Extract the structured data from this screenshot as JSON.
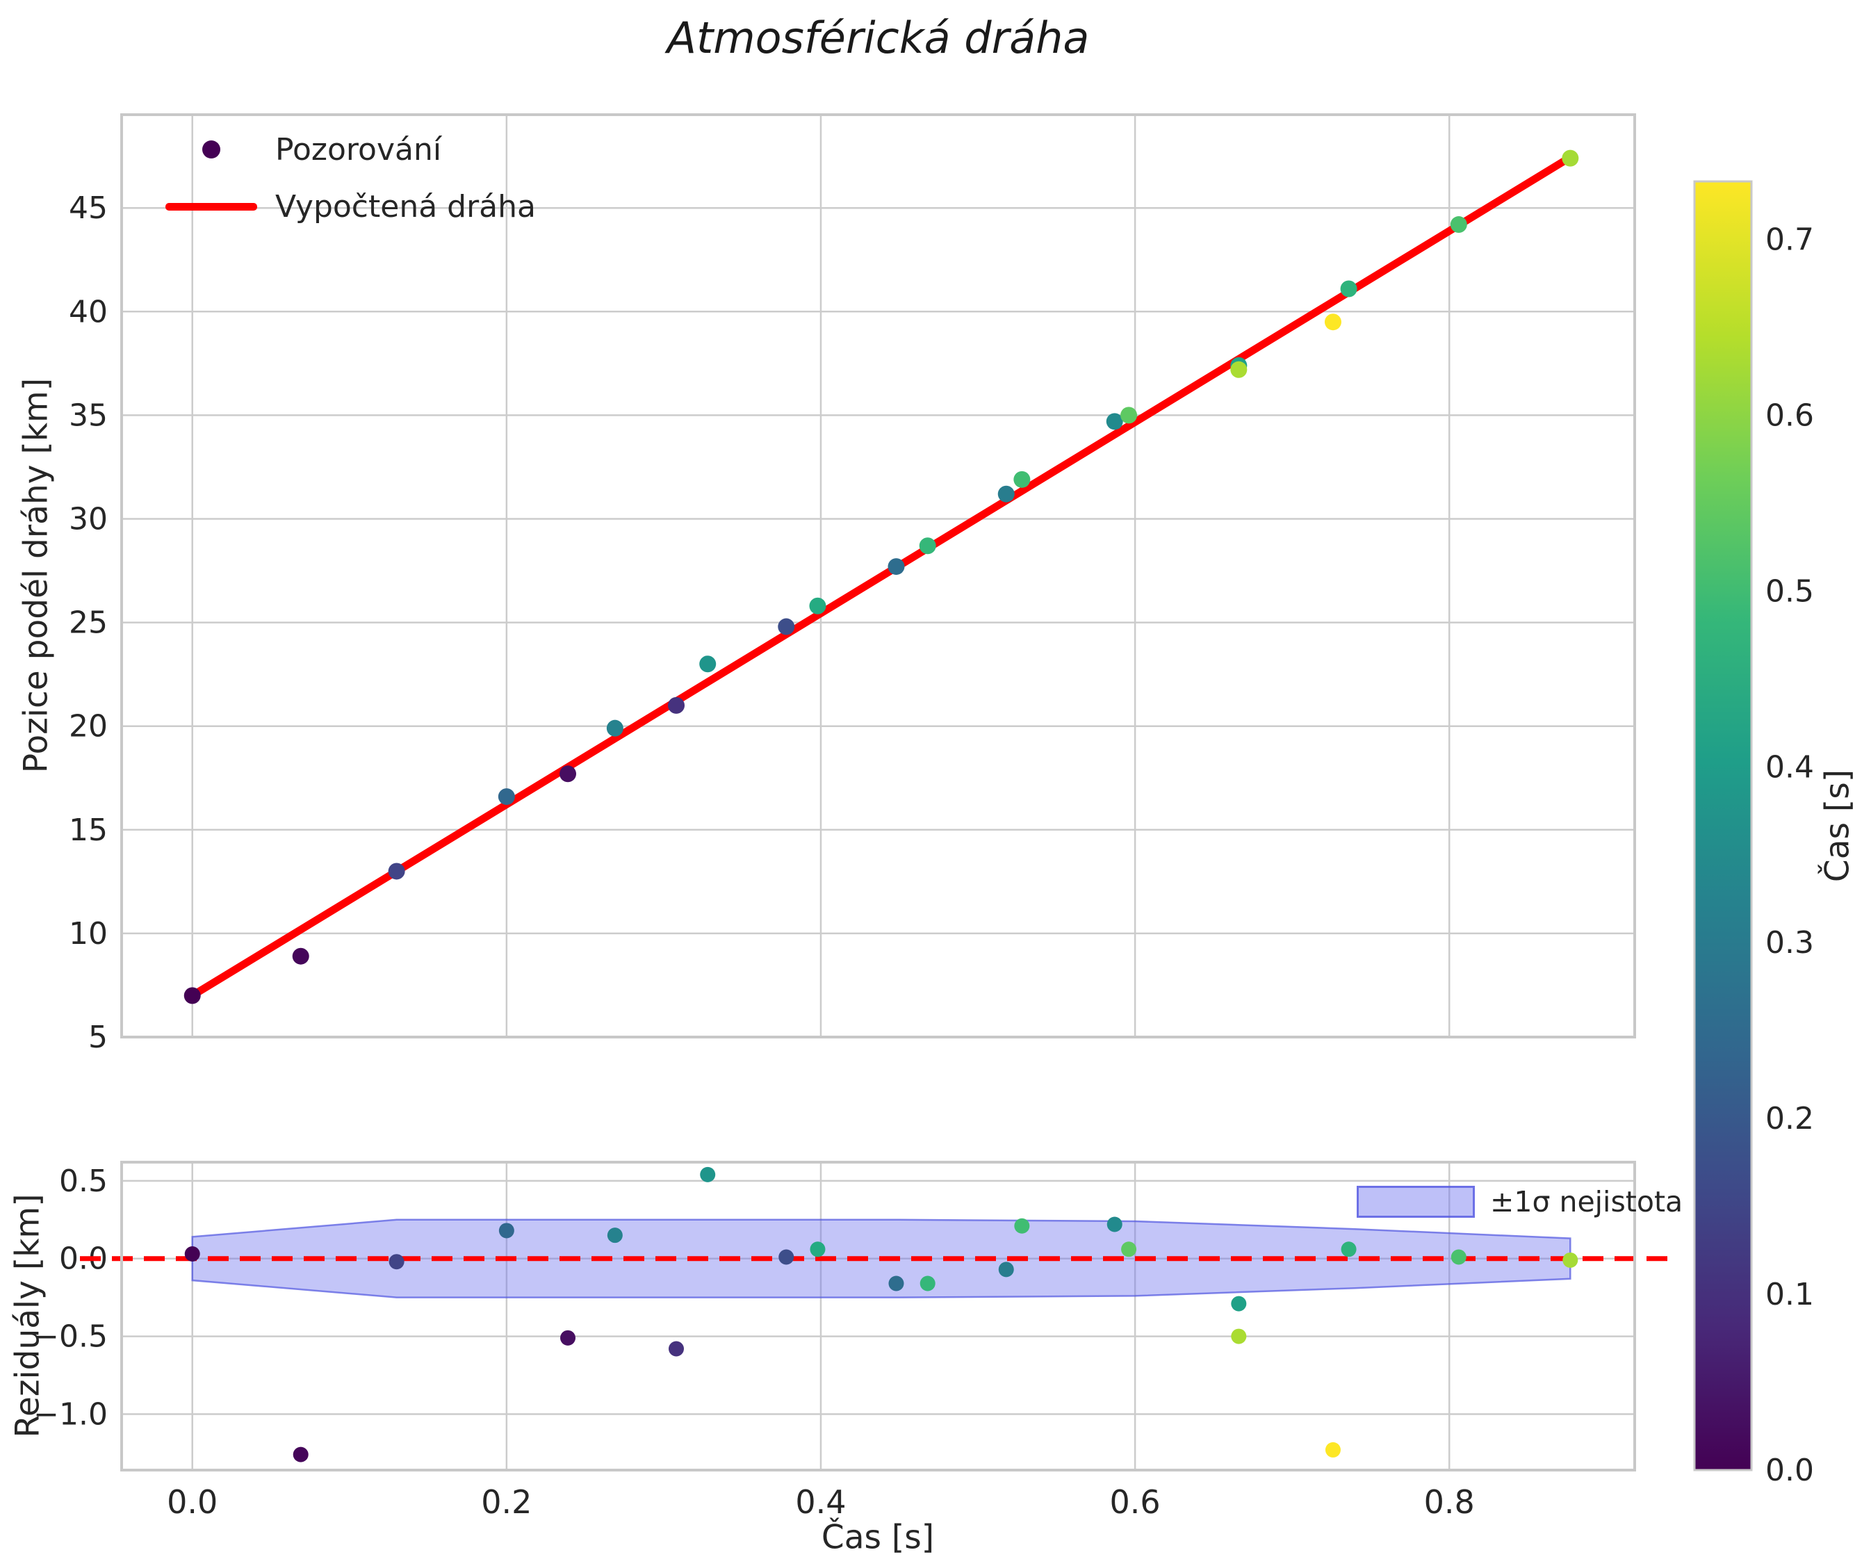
{
  "title": "Atmosférická dráha",
  "top_plot": {
    "ylabel": "Pozice podél dráhy [km]",
    "legend": {
      "observations_label": "Pozorování",
      "fit_label": "Vypočtená dráha"
    }
  },
  "residual_plot": {
    "ylabel": "Reziduály [km]",
    "xlabel": "Čas [s]",
    "legend_label": "±1σ nejistota"
  },
  "colorbar": {
    "label": "Čas [s]",
    "ticks": [
      0.0,
      0.1,
      0.2,
      0.3,
      0.4,
      0.5,
      0.6,
      0.7
    ],
    "vmin": 0.0,
    "vmax": 0.733,
    "colormap": "viridis",
    "stops": [
      [
        0.0,
        "#440154"
      ],
      [
        0.11,
        "#482878"
      ],
      [
        0.22,
        "#3e4a89"
      ],
      [
        0.33,
        "#31688e"
      ],
      [
        0.44,
        "#26828e"
      ],
      [
        0.55,
        "#1f9e89"
      ],
      [
        0.66,
        "#35b779"
      ],
      [
        0.77,
        "#6ece58"
      ],
      [
        0.88,
        "#b5de2b"
      ],
      [
        1.0,
        "#fde725"
      ]
    ]
  },
  "style": {
    "grid_color": "#cccccc",
    "spine_color": "#c8c8c8",
    "fit_color": "#ff0000",
    "zero_line_color": "#ff0000",
    "band_fill": "#6f74ef",
    "band_edge": "#5056e0",
    "tick_text_color": "#262626"
  },
  "chart_data": {
    "type": "scatter",
    "title": "Atmosférická dráha",
    "xlabel": "Čas [s]",
    "ylabel_top": "Pozice podél dráhy [km]",
    "ylabel_residuals": "Reziduály [km]",
    "legend_position_top": "upper left",
    "legend_position_residuals": "upper right",
    "grid": true,
    "color_dimension": {
      "label": "Čas [s]",
      "vmin": 0.0,
      "vmax": 0.73,
      "colormap": "viridis"
    },
    "observations": [
      {
        "t": 0.0,
        "s": 7.0,
        "residual": 0.03,
        "color": "#440154"
      },
      {
        "t": 0.069,
        "s": 8.9,
        "residual": -1.26,
        "color": "#45065a"
      },
      {
        "t": 0.13,
        "s": 13.0,
        "residual": -0.02,
        "color": "#414487"
      },
      {
        "t": 0.2,
        "s": 16.6,
        "residual": 0.18,
        "color": "#31688e"
      },
      {
        "t": 0.239,
        "s": 17.7,
        "residual": -0.51,
        "color": "#470e61"
      },
      {
        "t": 0.269,
        "s": 19.9,
        "residual": 0.15,
        "color": "#26828e"
      },
      {
        "t": 0.308,
        "s": 21.0,
        "residual": -0.58,
        "color": "#46327e"
      },
      {
        "t": 0.328,
        "s": 23.0,
        "residual": 0.54,
        "color": "#1f958b"
      },
      {
        "t": 0.378,
        "s": 24.8,
        "residual": 0.01,
        "color": "#3d4e8a"
      },
      {
        "t": 0.398,
        "s": 25.8,
        "residual": 0.06,
        "color": "#25ab82"
      },
      {
        "t": 0.448,
        "s": 27.7,
        "residual": -0.16,
        "color": "#2e6d8e"
      },
      {
        "t": 0.468,
        "s": 28.7,
        "residual": -0.16,
        "color": "#35b779"
      },
      {
        "t": 0.518,
        "s": 31.2,
        "residual": -0.07,
        "color": "#287d8e"
      },
      {
        "t": 0.528,
        "s": 31.9,
        "residual": 0.21,
        "color": "#40bd72"
      },
      {
        "t": 0.587,
        "s": 34.7,
        "residual": 0.22,
        "color": "#228a8d"
      },
      {
        "t": 0.596,
        "s": 35.0,
        "residual": 0.06,
        "color": "#5ec962"
      },
      {
        "t": 0.666,
        "s": 37.4,
        "residual": -0.29,
        "color": "#1fa187"
      },
      {
        "t": 0.666,
        "s": 37.2,
        "residual": -0.5,
        "color": "#aadc32"
      },
      {
        "t": 0.726,
        "s": 39.5,
        "residual": -1.23,
        "color": "#fde725"
      },
      {
        "t": 0.736,
        "s": 41.1,
        "residual": 0.06,
        "color": "#2eb37c"
      },
      {
        "t": 0.806,
        "s": 44.2,
        "residual": 0.01,
        "color": "#4ac16d"
      },
      {
        "t": 0.877,
        "s": 47.4,
        "residual": -0.01,
        "color": "#a5db36"
      }
    ],
    "fit_line": {
      "name": "Vypočtená dráha",
      "x": [
        0.0,
        0.875
      ],
      "y": [
        7.0,
        47.35
      ]
    },
    "uncertainty_band": {
      "name": "±1σ nejistota",
      "t": [
        0.0,
        0.13,
        0.45,
        0.6,
        0.74,
        0.877
      ],
      "sigma": [
        0.14,
        0.25,
        0.25,
        0.24,
        0.19,
        0.13
      ]
    },
    "top_axes": {
      "xlim": [
        -0.045,
        0.918
      ],
      "ylim": [
        5,
        49.5
      ],
      "x_ticks": [
        0.0,
        0.2,
        0.4,
        0.6,
        0.8
      ],
      "y_ticks": [
        5,
        10,
        15,
        20,
        25,
        30,
        35,
        40,
        45
      ]
    },
    "residual_axes": {
      "xlim": [
        -0.045,
        0.918
      ],
      "ylim": [
        -1.36,
        0.62
      ],
      "x_ticks": [
        0.0,
        0.2,
        0.4,
        0.6,
        0.8
      ],
      "y_ticks": [
        -1.0,
        -0.5,
        0.0,
        0.5
      ]
    }
  }
}
